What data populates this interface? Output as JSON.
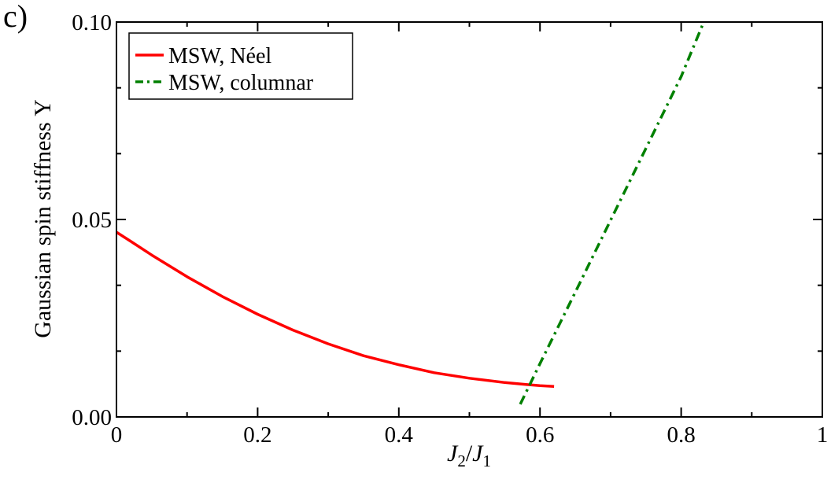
{
  "panel_label": "c)",
  "chart_data": {
    "type": "line",
    "title": "",
    "xlabel": "J2/J1",
    "xlabel_parts": {
      "j2": "J",
      "sub2": "2",
      "slash": "/",
      "j1": "J",
      "sub1": "1"
    },
    "ylabel": "Gaussian spin stiffness Υ",
    "xlim": [
      0,
      1
    ],
    "ylim": [
      0,
      0.1
    ],
    "xticks": [
      0,
      0.2,
      0.4,
      0.6,
      0.8,
      1
    ],
    "xtick_labels": [
      "0",
      "0.2",
      "0.4",
      "0.6",
      "0.8",
      "1"
    ],
    "yticks": [
      0,
      0.05,
      0.1
    ],
    "ytick_labels": [
      "0.00",
      "0.05",
      "0.10"
    ],
    "grid": false,
    "legend_position": "top-left",
    "series": [
      {
        "name": "MSW, Néel",
        "color": "#ff0000",
        "style": "solid",
        "x": [
          0,
          0.02,
          0.05,
          0.1,
          0.15,
          0.2,
          0.25,
          0.3,
          0.35,
          0.4,
          0.45,
          0.5,
          0.55,
          0.58,
          0.6,
          0.62
        ],
        "y": [
          0.0468,
          0.0445,
          0.041,
          0.0355,
          0.0305,
          0.026,
          0.022,
          0.0185,
          0.0155,
          0.0132,
          0.0112,
          0.0098,
          0.0087,
          0.0082,
          0.0079,
          0.0077
        ]
      },
      {
        "name": "MSW, columnar",
        "color": "#008000",
        "style": "dashdot",
        "x": [
          0.572,
          0.6,
          0.65,
          0.7,
          0.75,
          0.8,
          0.832
        ],
        "y": [
          0.0032,
          0.0135,
          0.0316,
          0.0498,
          0.068,
          0.0862,
          0.1
        ]
      }
    ]
  }
}
